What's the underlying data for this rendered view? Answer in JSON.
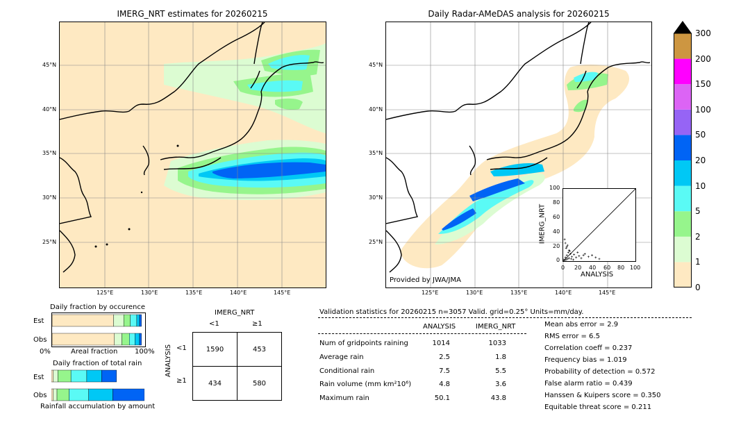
{
  "left_map": {
    "title": "IMERG_NRT estimates for 20260215"
  },
  "right_map": {
    "title": "Daily Radar-AMeDAS analysis for 20260215",
    "credit": "Provided by JWA/JMA"
  },
  "axes": {
    "lat_labels": [
      "45°N",
      "40°N",
      "35°N",
      "30°N",
      "25°N"
    ],
    "lon_labels": [
      "125°E",
      "130°E",
      "135°E",
      "140°E",
      "145°E"
    ]
  },
  "colorbar": {
    "levels": [
      "0",
      "1",
      "2",
      "5",
      "10",
      "20",
      "50",
      "100",
      "150",
      "200",
      "300"
    ],
    "colors": [
      "#fee9c2",
      "#dcfcd2",
      "#96f58c",
      "#5afaf5",
      "#00c8f5",
      "#0064f5",
      "#9664f5",
      "#dc64f5",
      "#ff00ff",
      "#cd9641"
    ],
    "over_color": "#000000"
  },
  "inset": {
    "xlabel": "ANALYSIS",
    "ylabel": "IMERG_NRT",
    "ticks": [
      "0",
      "20",
      "40",
      "60",
      "80",
      "100"
    ]
  },
  "fraction_occurrence": {
    "title": "Daily fraction by occurence",
    "rows": [
      "Est",
      "Obs"
    ],
    "x_left": "0%",
    "x_mid": "Areal fraction",
    "x_right": "100%",
    "est": [
      0.66,
      0.11,
      0.07,
      0.07,
      0.03,
      0.02
    ],
    "obs": [
      0.67,
      0.08,
      0.08,
      0.06,
      0.05,
      0.02
    ]
  },
  "fraction_total": {
    "title": "Daily fraction of total rain",
    "rows": [
      "Est",
      "Obs"
    ],
    "footer": "Rainfall accumulation by amount",
    "est": [
      0.02,
      0.05,
      0.14,
      0.17,
      0.16,
      0.16
    ],
    "obs": [
      0.02,
      0.04,
      0.13,
      0.21,
      0.26,
      0.34
    ]
  },
  "contingency": {
    "col_header": "IMERG_NRT",
    "col_labels": [
      "<1",
      "≥1"
    ],
    "row_header": "ANALYSIS",
    "row_labels": [
      "<1",
      "≥1"
    ],
    "cells": [
      [
        "1590",
        "453"
      ],
      [
        "434",
        "580"
      ]
    ]
  },
  "validation": {
    "header": "Validation statistics for 20260215  n=3057 Valid. grid=0.25° Units=mm/day.",
    "col_analysis": "ANALYSIS",
    "col_imerg": "IMERG_NRT",
    "rows": [
      {
        "label": "Num of gridpoints raining",
        "analysis": "1014",
        "imerg": "1033"
      },
      {
        "label": "Average rain",
        "analysis": "2.5",
        "imerg": "1.8"
      },
      {
        "label": "Conditional rain",
        "analysis": "7.5",
        "imerg": "5.5"
      },
      {
        "label": "Rain volume (mm km²10⁶)",
        "analysis": "4.8",
        "imerg": "3.6"
      },
      {
        "label": "Maximum rain",
        "analysis": "50.1",
        "imerg": "43.8"
      }
    ],
    "scores": [
      "Mean abs error =    2.9",
      "RMS error =    6.5",
      "Correlation coeff =  0.237",
      "Frequency bias =  1.019",
      "Probability of detection =  0.572",
      "False alarm ratio =  0.439",
      "Hanssen & Kuipers score =  0.350",
      "Equitable threat score =  0.211"
    ]
  },
  "chart_data": [
    {
      "type": "scatter",
      "title": "",
      "xlabel": "ANALYSIS",
      "ylabel": "IMERG_NRT",
      "xlim": [
        0,
        100
      ],
      "ylim": [
        0,
        100
      ],
      "points": [
        [
          1,
          2
        ],
        [
          2,
          1
        ],
        [
          3,
          5
        ],
        [
          4,
          2
        ],
        [
          5,
          8
        ],
        [
          6,
          3
        ],
        [
          7,
          12
        ],
        [
          8,
          4
        ],
        [
          2,
          30
        ],
        [
          3,
          25
        ],
        [
          5,
          20
        ],
        [
          8,
          15
        ],
        [
          10,
          10
        ],
        [
          12,
          6
        ],
        [
          15,
          9
        ],
        [
          18,
          5
        ],
        [
          20,
          12
        ],
        [
          22,
          7
        ],
        [
          25,
          4
        ],
        [
          28,
          8
        ],
        [
          30,
          10
        ],
        [
          35,
          6
        ],
        [
          40,
          8
        ],
        [
          45,
          5
        ],
        [
          50,
          3
        ],
        [
          4,
          18
        ],
        [
          6,
          22
        ],
        [
          9,
          14
        ],
        [
          11,
          3
        ],
        [
          14,
          2
        ]
      ]
    },
    {
      "type": "bar",
      "title": "Daily fraction by occurence",
      "categories": [
        "Est",
        "Obs"
      ],
      "series_colors": [
        "#fee9c2",
        "#dcfcd2",
        "#96f58c",
        "#5afaf5",
        "#00c8f5",
        "#0064f5"
      ],
      "est": [
        0.66,
        0.11,
        0.07,
        0.07,
        0.03,
        0.02
      ],
      "obs": [
        0.67,
        0.08,
        0.08,
        0.06,
        0.05,
        0.02
      ]
    },
    {
      "type": "table",
      "title": "Validation statistics for 20260215",
      "rows": [
        [
          "Num of gridpoints raining",
          "1014",
          "1033"
        ],
        [
          "Average rain",
          "2.5",
          "1.8"
        ],
        [
          "Conditional rain",
          "7.5",
          "5.5"
        ],
        [
          "Rain volume (mm km²10⁶)",
          "4.8",
          "3.6"
        ],
        [
          "Maximum rain",
          "50.1",
          "43.8"
        ]
      ]
    }
  ]
}
